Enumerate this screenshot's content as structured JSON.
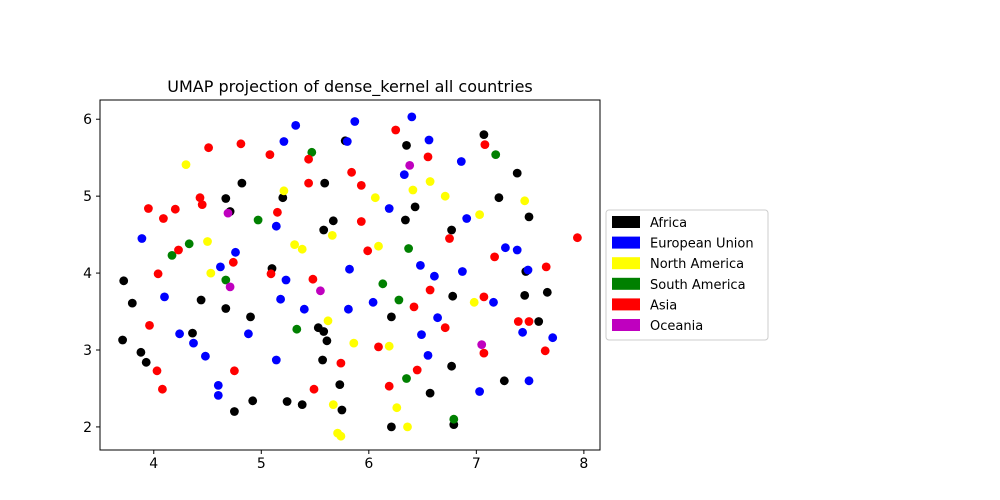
{
  "chart_data": {
    "type": "scatter",
    "title": "UMAP projection of dense_kernel all countries",
    "xlabel": "",
    "ylabel": "",
    "xlim": [
      3.5,
      8.15
    ],
    "ylim": [
      1.7,
      6.25
    ],
    "x_ticks": [
      4,
      5,
      6,
      7,
      8
    ],
    "y_ticks": [
      2,
      3,
      4,
      5,
      6
    ],
    "grid": false,
    "legend_position": "center-right",
    "series": [
      {
        "name": "Africa",
        "color": "#000000",
        "points": [
          [
            3.72,
            3.9
          ],
          [
            3.8,
            3.61
          ],
          [
            3.71,
            3.13
          ],
          [
            3.88,
            2.97
          ],
          [
            3.93,
            2.84
          ],
          [
            4.36,
            3.22
          ],
          [
            4.44,
            3.65
          ],
          [
            4.67,
            3.54
          ],
          [
            4.67,
            4.97
          ],
          [
            4.71,
            4.8
          ],
          [
            4.82,
            5.17
          ],
          [
            4.9,
            3.43
          ],
          [
            4.75,
            2.2
          ],
          [
            4.92,
            2.34
          ],
          [
            5.1,
            4.06
          ],
          [
            5.2,
            4.98
          ],
          [
            5.24,
            2.33
          ],
          [
            5.38,
            2.29
          ],
          [
            5.53,
            3.29
          ],
          [
            5.58,
            3.24
          ],
          [
            5.61,
            3.12
          ],
          [
            5.57,
            2.87
          ],
          [
            5.73,
            2.55
          ],
          [
            5.75,
            2.22
          ],
          [
            5.58,
            4.56
          ],
          [
            5.59,
            5.17
          ],
          [
            5.67,
            4.68
          ],
          [
            5.78,
            5.72
          ],
          [
            6.21,
            3.43
          ],
          [
            6.21,
            2.0
          ],
          [
            6.34,
            4.69
          ],
          [
            6.35,
            5.66
          ],
          [
            6.43,
            4.86
          ],
          [
            6.57,
            2.44
          ],
          [
            6.77,
            4.56
          ],
          [
            6.78,
            3.7
          ],
          [
            6.77,
            2.79
          ],
          [
            6.79,
            2.03
          ],
          [
            7.07,
            5.8
          ],
          [
            7.21,
            4.98
          ],
          [
            7.26,
            2.6
          ],
          [
            7.38,
            5.3
          ],
          [
            7.46,
            4.02
          ],
          [
            7.45,
            3.71
          ],
          [
            7.49,
            4.73
          ],
          [
            7.58,
            3.37
          ],
          [
            7.66,
            3.75
          ]
        ]
      },
      {
        "name": "European Union",
        "color": "#0000ff",
        "points": [
          [
            3.89,
            4.45
          ],
          [
            4.1,
            3.69
          ],
          [
            4.24,
            3.21
          ],
          [
            4.37,
            3.09
          ],
          [
            4.48,
            2.92
          ],
          [
            4.6,
            2.54
          ],
          [
            4.6,
            2.41
          ],
          [
            4.62,
            4.08
          ],
          [
            4.76,
            4.27
          ],
          [
            4.88,
            3.21
          ],
          [
            5.14,
            4.61
          ],
          [
            5.14,
            2.87
          ],
          [
            5.18,
            3.66
          ],
          [
            5.21,
            5.71
          ],
          [
            5.23,
            3.91
          ],
          [
            5.32,
            5.92
          ],
          [
            5.4,
            3.53
          ],
          [
            5.8,
            5.71
          ],
          [
            5.81,
            3.53
          ],
          [
            5.82,
            4.05
          ],
          [
            5.87,
            5.97
          ],
          [
            6.04,
            3.62
          ],
          [
            6.19,
            4.84
          ],
          [
            6.33,
            5.28
          ],
          [
            6.4,
            6.03
          ],
          [
            6.48,
            4.1
          ],
          [
            6.49,
            3.2
          ],
          [
            6.55,
            2.93
          ],
          [
            6.56,
            5.73
          ],
          [
            6.61,
            3.96
          ],
          [
            6.64,
            3.42
          ],
          [
            6.86,
            5.45
          ],
          [
            6.87,
            4.02
          ],
          [
            6.91,
            4.71
          ],
          [
            7.03,
            2.46
          ],
          [
            7.16,
            3.62
          ],
          [
            7.27,
            4.33
          ],
          [
            7.38,
            4.3
          ],
          [
            7.43,
            3.23
          ],
          [
            7.48,
            4.04
          ],
          [
            7.49,
            2.6
          ],
          [
            7.71,
            3.16
          ]
        ]
      },
      {
        "name": "North America",
        "color": "#ffff00",
        "points": [
          [
            4.3,
            5.41
          ],
          [
            4.5,
            4.41
          ],
          [
            4.53,
            4.0
          ],
          [
            5.21,
            5.07
          ],
          [
            5.31,
            4.37
          ],
          [
            5.38,
            4.31
          ],
          [
            5.62,
            3.38
          ],
          [
            5.66,
            4.49
          ],
          [
            5.67,
            2.29
          ],
          [
            5.71,
            1.92
          ],
          [
            5.74,
            1.88
          ],
          [
            5.86,
            3.09
          ],
          [
            6.06,
            4.98
          ],
          [
            6.09,
            4.35
          ],
          [
            6.19,
            3.05
          ],
          [
            6.26,
            2.25
          ],
          [
            6.36,
            2.0
          ],
          [
            6.41,
            5.08
          ],
          [
            6.57,
            5.19
          ],
          [
            6.71,
            5.0
          ],
          [
            6.98,
            3.62
          ],
          [
            7.03,
            4.76
          ],
          [
            7.45,
            4.94
          ]
        ]
      },
      {
        "name": "South America",
        "color": "#008000",
        "points": [
          [
            4.17,
            4.23
          ],
          [
            4.33,
            4.38
          ],
          [
            4.67,
            3.91
          ],
          [
            4.97,
            4.69
          ],
          [
            5.33,
            3.27
          ],
          [
            5.47,
            5.57
          ],
          [
            6.13,
            3.86
          ],
          [
            6.28,
            3.65
          ],
          [
            6.35,
            2.63
          ],
          [
            6.37,
            4.32
          ],
          [
            6.79,
            2.1
          ],
          [
            7.18,
            5.54
          ]
        ]
      },
      {
        "name": "Asia",
        "color": "#ff0000",
        "points": [
          [
            3.95,
            4.84
          ],
          [
            3.96,
            3.32
          ],
          [
            4.03,
            2.73
          ],
          [
            4.04,
            3.99
          ],
          [
            4.08,
            2.49
          ],
          [
            4.09,
            4.71
          ],
          [
            4.2,
            4.83
          ],
          [
            4.23,
            4.3
          ],
          [
            4.43,
            4.98
          ],
          [
            4.45,
            4.89
          ],
          [
            4.51,
            5.63
          ],
          [
            4.74,
            4.14
          ],
          [
            4.75,
            2.73
          ],
          [
            4.81,
            5.68
          ],
          [
            5.08,
            5.54
          ],
          [
            5.09,
            3.99
          ],
          [
            5.15,
            4.79
          ],
          [
            5.44,
            5.48
          ],
          [
            5.44,
            5.17
          ],
          [
            5.48,
            3.92
          ],
          [
            5.49,
            2.49
          ],
          [
            5.74,
            2.83
          ],
          [
            5.84,
            5.31
          ],
          [
            5.93,
            5.14
          ],
          [
            5.93,
            4.67
          ],
          [
            5.99,
            4.29
          ],
          [
            6.09,
            3.04
          ],
          [
            6.19,
            2.53
          ],
          [
            6.25,
            5.86
          ],
          [
            6.42,
            3.56
          ],
          [
            6.45,
            2.74
          ],
          [
            6.55,
            5.51
          ],
          [
            6.57,
            3.78
          ],
          [
            6.71,
            3.29
          ],
          [
            6.75,
            4.45
          ],
          [
            7.07,
            3.69
          ],
          [
            7.07,
            2.96
          ],
          [
            7.08,
            5.67
          ],
          [
            7.17,
            4.21
          ],
          [
            7.39,
            3.37
          ],
          [
            7.49,
            3.37
          ],
          [
            7.64,
            2.99
          ],
          [
            7.65,
            4.08
          ],
          [
            7.94,
            4.46
          ]
        ]
      },
      {
        "name": "Oceania",
        "color": "#bf00bf",
        "points": [
          [
            4.69,
            4.78
          ],
          [
            4.71,
            3.82
          ],
          [
            5.55,
            3.77
          ],
          [
            6.38,
            5.4
          ],
          [
            7.05,
            3.07
          ]
        ]
      }
    ]
  }
}
